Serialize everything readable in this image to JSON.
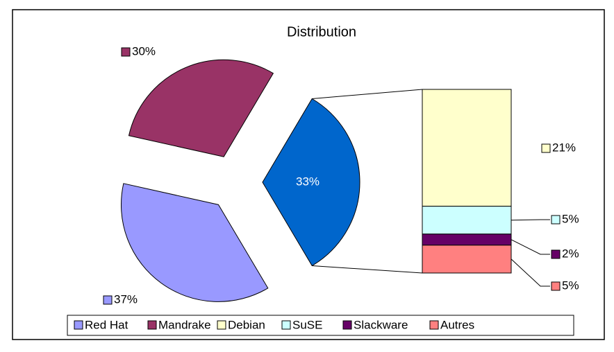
{
  "chart_data": {
    "type": "bar-of-pie",
    "title": "Distribution",
    "categories": [
      "Red Hat",
      "Mandrake",
      "Debian",
      "SuSE",
      "Slackware",
      "Autres"
    ],
    "values": [
      37,
      30,
      21,
      5,
      2,
      5
    ],
    "value_labels": [
      "37%",
      "30%",
      "21%",
      "5%",
      "2%",
      "5%"
    ],
    "colors": [
      "#9999ff",
      "#993366",
      "#ffffcc",
      "#ccffff",
      "#660066",
      "#ff8080"
    ],
    "other_value": 33,
    "other_label": "33%",
    "other_color": "#0066cc",
    "legend": "bottom"
  }
}
